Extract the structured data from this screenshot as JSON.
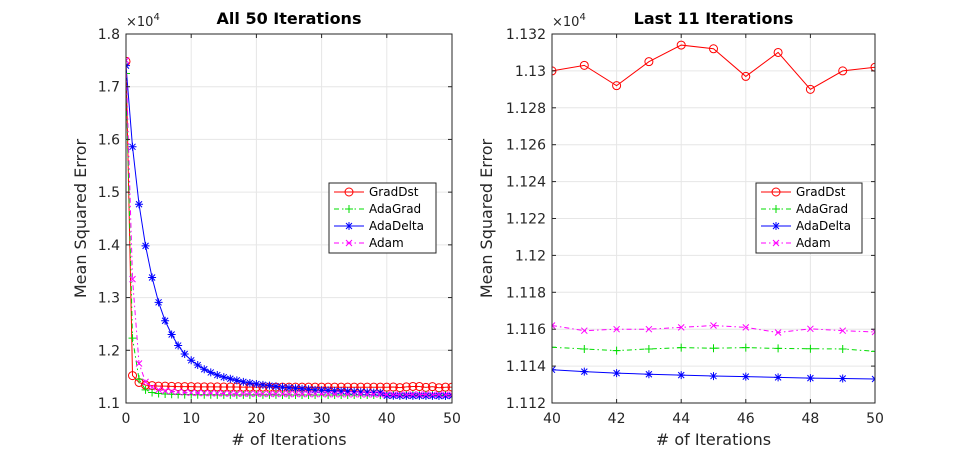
{
  "colors": {
    "GradDst": "#ff0000",
    "AdaGrad": "#00dd00",
    "AdaDelta": "#0000ff",
    "Adam": "#ff00ff"
  },
  "chart_data": [
    {
      "type": "line",
      "title": "All 50 Iterations",
      "xlabel": "# of Iterations",
      "ylabel": "Mean Squared Error",
      "multiplier": "×10",
      "exponent": "4",
      "xlim": [
        0,
        50
      ],
      "ylim": [
        11000,
        18000
      ],
      "xticks": [
        0,
        10,
        20,
        30,
        40,
        50
      ],
      "yticks": [
        11000,
        12000,
        13000,
        14000,
        15000,
        16000,
        17000,
        18000
      ],
      "ytick_labels": [
        "1.1",
        "1.2",
        "1.3",
        "1.4",
        "1.5",
        "1.6",
        "1.7",
        "1.8"
      ],
      "grid": true,
      "legend": "right-center",
      "series": [
        {
          "name": "GradDst",
          "marker": "circle",
          "dash": "",
          "x": [
            0,
            1,
            2,
            3,
            4,
            5,
            6,
            7,
            8,
            9,
            10,
            11,
            12,
            13,
            14,
            15,
            16,
            17,
            18,
            19,
            20,
            21,
            22,
            23,
            24,
            25,
            26,
            27,
            28,
            29,
            30,
            31,
            32,
            33,
            34,
            35,
            36,
            37,
            38,
            39,
            40,
            41,
            42,
            43,
            44,
            45,
            46,
            47,
            48,
            49,
            50
          ],
          "y": [
            17480,
            11520,
            11390,
            11340,
            11330,
            11320,
            11320,
            11315,
            11310,
            11310,
            11310,
            11305,
            11305,
            11305,
            11305,
            11303,
            11303,
            11303,
            11302,
            11302,
            11302,
            11302,
            11301,
            11301,
            11301,
            11301,
            11301,
            11300,
            11300,
            11300,
            11300,
            11300,
            11300,
            11300,
            11300,
            11300,
            11300,
            11300,
            11300,
            11300,
            11300,
            11303,
            11292,
            11305,
            11314,
            11312,
            11297,
            11310,
            11290,
            11300,
            11302
          ]
        },
        {
          "name": "AdaGrad",
          "marker": "plus",
          "dash": "5,3,1.5,3",
          "x": [
            0,
            1,
            2,
            3,
            4,
            5,
            6,
            7,
            8,
            9,
            10,
            11,
            12,
            13,
            14,
            15,
            16,
            17,
            18,
            19,
            20,
            21,
            22,
            23,
            24,
            25,
            26,
            27,
            28,
            29,
            30,
            31,
            32,
            33,
            34,
            35,
            36,
            37,
            38,
            39,
            40,
            41,
            42,
            43,
            44,
            45,
            46,
            47,
            48,
            49,
            50
          ],
          "y": [
            17250,
            12230,
            11450,
            11250,
            11200,
            11180,
            11170,
            11165,
            11162,
            11160,
            11158,
            11157,
            11156,
            11156,
            11155,
            11155,
            11155,
            11154,
            11154,
            11154,
            11153,
            11153,
            11153,
            11153,
            11152,
            11152,
            11152,
            11152,
            11152,
            11152,
            11151,
            11151,
            11151,
            11151,
            11151,
            11151,
            11151,
            11151,
            11151,
            11150,
            11150,
            11149,
            11148,
            11149,
            11150,
            11149,
            11150,
            11149,
            11149,
            11149,
            11148
          ]
        },
        {
          "name": "AdaDelta",
          "marker": "star",
          "dash": "",
          "x": [
            0,
            1,
            2,
            3,
            4,
            5,
            6,
            7,
            8,
            9,
            10,
            11,
            12,
            13,
            14,
            15,
            16,
            17,
            18,
            19,
            20,
            21,
            22,
            23,
            24,
            25,
            26,
            27,
            28,
            29,
            30,
            31,
            32,
            33,
            34,
            35,
            36,
            37,
            38,
            39,
            40,
            41,
            42,
            43,
            44,
            45,
            46,
            47,
            48,
            49,
            50
          ],
          "y": [
            17400,
            15860,
            14770,
            13980,
            13380,
            12910,
            12560,
            12300,
            12090,
            11930,
            11810,
            11720,
            11640,
            11580,
            11530,
            11490,
            11460,
            11430,
            11400,
            11380,
            11360,
            11345,
            11330,
            11315,
            11300,
            11290,
            11280,
            11270,
            11260,
            11250,
            11245,
            11240,
            11230,
            11225,
            11220,
            11215,
            11210,
            11205,
            11200,
            11195,
            11138,
            11137,
            11136,
            11135,
            11135,
            11134,
            11134,
            11134,
            11133,
            11133,
            11133
          ]
        },
        {
          "name": "Adam",
          "marker": "x",
          "dash": "5,3,1.5,3",
          "x": [
            0,
            1,
            2,
            3,
            4,
            5,
            6,
            7,
            8,
            9,
            10,
            11,
            12,
            13,
            14,
            15,
            16,
            17,
            18,
            19,
            20,
            21,
            22,
            23,
            24,
            25,
            26,
            27,
            28,
            29,
            30,
            31,
            32,
            33,
            34,
            35,
            36,
            37,
            38,
            39,
            40,
            41,
            42,
            43,
            44,
            45,
            46,
            47,
            48,
            49,
            50
          ],
          "y": [
            17500,
            13350,
            11750,
            11400,
            11300,
            11250,
            11230,
            11220,
            11210,
            11200,
            11195,
            11190,
            11188,
            11185,
            11183,
            11180,
            11178,
            11176,
            11175,
            11174,
            11173,
            11172,
            11171,
            11170,
            11170,
            11169,
            11169,
            11168,
            11168,
            11167,
            11167,
            11166,
            11166,
            11165,
            11165,
            11165,
            11164,
            11164,
            11163,
            11163,
            11162,
            11159,
            11160,
            11160,
            11161,
            11162,
            11161,
            11158,
            11160,
            11159,
            11158
          ]
        }
      ]
    },
    {
      "type": "line",
      "title": "Last 11 Iterations",
      "xlabel": "# of Iterations",
      "ylabel": "Mean Squared Error",
      "multiplier": "×10",
      "exponent": "4",
      "xlim": [
        40,
        50
      ],
      "ylim": [
        11120,
        11320
      ],
      "xticks": [
        40,
        42,
        44,
        46,
        48,
        50
      ],
      "yticks": [
        11120,
        11140,
        11160,
        11180,
        11200,
        11220,
        11240,
        11260,
        11280,
        11300,
        11320
      ],
      "ytick_labels": [
        "1.112",
        "1.114",
        "1.116",
        "1.118",
        "1.12",
        "1.122",
        "1.124",
        "1.126",
        "1.128",
        "1.13",
        "1.132"
      ],
      "grid": true,
      "legend": "right-center",
      "series": [
        {
          "name": "GradDst",
          "marker": "circle",
          "dash": "",
          "x": [
            40,
            41,
            42,
            43,
            44,
            45,
            46,
            47,
            48,
            49,
            50
          ],
          "y": [
            11300,
            11303,
            11292,
            11305,
            11314,
            11312,
            11297,
            11310,
            11290,
            11300,
            11302
          ]
        },
        {
          "name": "AdaGrad",
          "marker": "plus",
          "dash": "5,3,1.5,3",
          "x": [
            40,
            41,
            42,
            43,
            44,
            45,
            46,
            47,
            48,
            49,
            50
          ],
          "y": [
            11150.2,
            11149.3,
            11148.4,
            11149.3,
            11150,
            11149.7,
            11150,
            11149.6,
            11149.4,
            11149.3,
            11148
          ]
        },
        {
          "name": "AdaDelta",
          "marker": "star",
          "dash": "",
          "x": [
            40,
            41,
            42,
            43,
            44,
            45,
            46,
            47,
            48,
            49,
            50
          ],
          "y": [
            11138,
            11137,
            11136.2,
            11135.6,
            11135.1,
            11134.6,
            11134.3,
            11133.9,
            11133.5,
            11133.3,
            11133
          ]
        },
        {
          "name": "Adam",
          "marker": "x",
          "dash": "5,3,1.5,3",
          "x": [
            40,
            41,
            42,
            43,
            44,
            45,
            46,
            47,
            48,
            49,
            50
          ],
          "y": [
            11162,
            11159.2,
            11160,
            11160,
            11161,
            11162,
            11161,
            11158.2,
            11160.2,
            11159.2,
            11158.5
          ]
        }
      ]
    }
  ]
}
